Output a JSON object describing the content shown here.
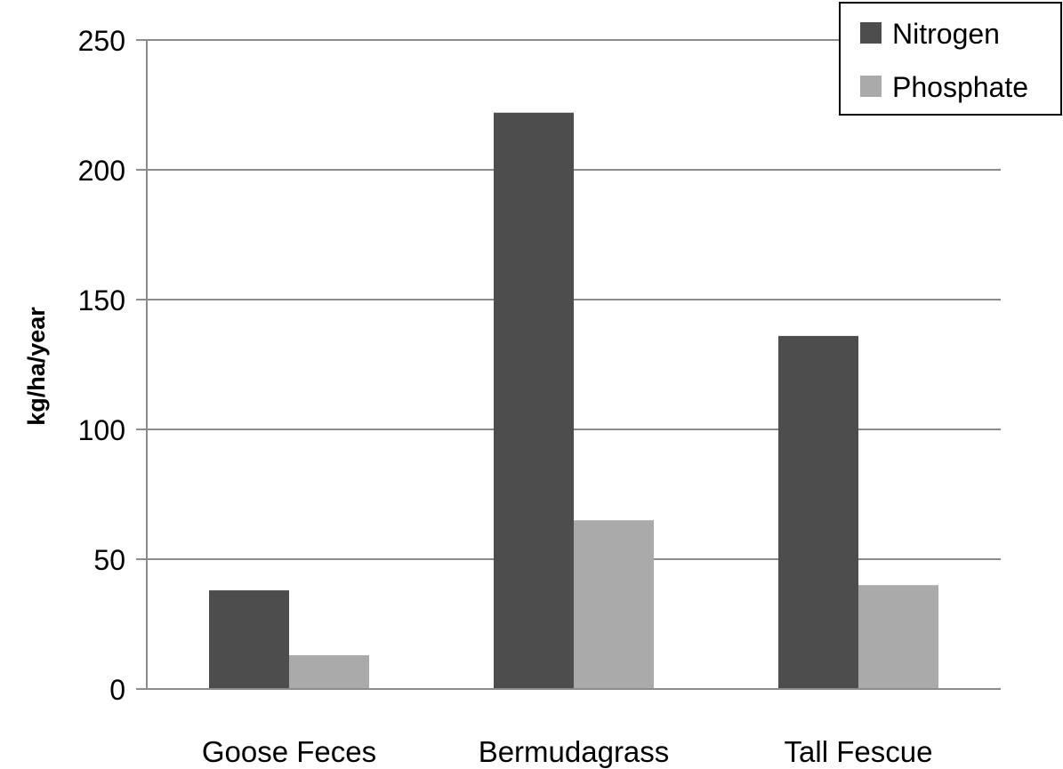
{
  "chart_data": {
    "type": "bar",
    "title": "",
    "xlabel": "",
    "ylabel": "kg/ha/year",
    "ylim": [
      0,
      250
    ],
    "yticks": [
      0,
      50,
      100,
      150,
      200,
      250
    ],
    "grid": true,
    "legend_position": "top-right",
    "categories": [
      "Goose Feces",
      "Bermudagrass",
      "Tall Fescue"
    ],
    "series": [
      {
        "name": "Nitrogen",
        "color": "#4d4d4d",
        "values": [
          38,
          222,
          136
        ]
      },
      {
        "name": "Phosphate",
        "color": "#aaaaaa",
        "values": [
          13,
          65,
          40
        ]
      }
    ]
  }
}
